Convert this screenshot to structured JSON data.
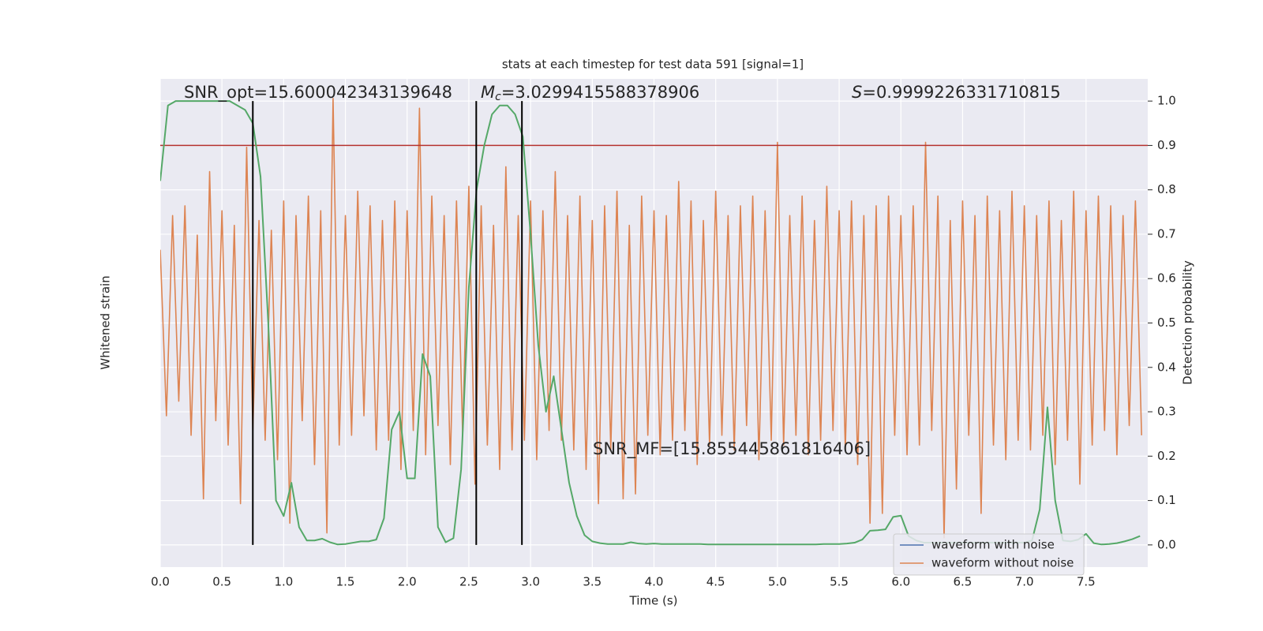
{
  "chart_data": {
    "type": "line",
    "title": "stats at each timestep for test data 591 [signal=1]",
    "xlabel": "Time (s)",
    "ylabel": "Whitened strain",
    "y2label": "Detection probability",
    "xlim": [
      0,
      8.0
    ],
    "xticks": [
      {
        "value": 0,
        "label": "0.0"
      },
      0.5,
      {
        "value": 1,
        "label": "1.0"
      },
      1.5,
      {
        "value": 2,
        "label": "2.0"
      },
      2.5,
      {
        "value": 3,
        "label": "3.0"
      },
      3.5,
      {
        "value": 4,
        "label": "4.0"
      },
      4.5,
      {
        "value": 5,
        "label": "5.0"
      },
      5.5,
      {
        "value": 6,
        "label": "6.0"
      },
      6.5,
      {
        "value": 7,
        "label": "7.0"
      },
      7.5
    ],
    "ylim": [
      -5,
      5
    ],
    "y2lim": [
      -0.05,
      1.05
    ],
    "y2ticks": [
      {
        "value": 0,
        "label": "0.0"
      },
      0.1,
      0.2,
      0.3,
      0.4,
      0.5,
      0.6,
      0.7,
      0.8,
      0.9,
      {
        "value": 1,
        "label": "1.0"
      }
    ],
    "grid": true,
    "legend": "lower right",
    "series": [
      {
        "name": "waveform with noise",
        "color": "#4c72b0",
        "x": [],
        "values": []
      },
      {
        "name": "waveform without noise",
        "color": "#dd8452",
        "x": [
          0.0,
          0.05,
          0.1,
          0.15,
          0.2,
          0.25,
          0.3,
          0.35,
          0.4,
          0.45,
          0.5,
          0.55,
          0.6,
          0.65,
          0.7,
          0.75,
          0.8,
          0.85,
          0.9,
          0.95,
          1.0,
          1.05,
          1.1,
          1.15,
          1.2,
          1.25,
          1.3,
          1.35,
          1.4,
          1.45,
          1.5,
          1.55,
          1.6,
          1.65,
          1.7,
          1.75,
          1.8,
          1.85,
          1.9,
          1.95,
          2.0,
          2.05,
          2.1,
          2.15,
          2.2,
          2.25,
          2.3,
          2.35,
          2.4,
          2.45,
          2.5,
          2.55,
          2.6,
          2.65,
          2.7,
          2.75,
          2.8,
          2.85,
          2.9,
          2.95,
          3.0,
          3.05,
          3.1,
          3.15,
          3.2,
          3.25,
          3.3,
          3.35,
          3.4,
          3.45,
          3.5,
          3.55,
          3.6,
          3.65,
          3.7,
          3.75,
          3.8,
          3.85,
          3.9,
          3.95,
          4.0,
          4.05,
          4.1,
          4.15,
          4.2,
          4.25,
          4.3,
          4.35,
          4.4,
          4.45,
          4.5,
          4.55,
          4.6,
          4.65,
          4.7,
          4.75,
          4.8,
          4.85,
          4.9,
          4.95,
          5.0,
          5.05,
          5.1,
          5.15,
          5.2,
          5.25,
          5.3,
          5.35,
          5.4,
          5.45,
          5.5,
          5.55,
          5.6,
          5.65,
          5.7,
          5.75,
          5.8,
          5.85,
          5.9,
          5.95,
          6.0,
          6.05,
          6.1,
          6.15,
          6.2,
          6.25,
          6.3,
          6.35,
          6.4,
          6.45,
          6.5,
          6.55,
          6.6,
          6.65,
          6.7,
          6.75,
          6.8,
          6.85,
          6.9,
          6.95,
          7.0,
          7.05,
          7.1,
          7.15,
          7.2,
          7.25,
          7.3,
          7.35,
          7.4,
          7.45,
          7.5,
          7.55,
          7.6,
          7.65,
          7.7,
          7.75,
          7.8,
          7.85,
          7.9,
          7.95
        ],
        "values": [
          1.5,
          -1.9,
          2.2,
          -1.6,
          2.4,
          -2.3,
          1.8,
          -3.6,
          3.1,
          -2.0,
          2.3,
          -2.5,
          2.0,
          -3.7,
          3.6,
          -2.2,
          2.1,
          -2.4,
          1.9,
          -2.8,
          2.5,
          -4.1,
          2.2,
          -2.0,
          2.6,
          -2.9,
          2.3,
          -4.3,
          4.6,
          -2.5,
          2.2,
          -2.3,
          2.7,
          -1.9,
          2.4,
          -2.6,
          2.1,
          -2.4,
          2.5,
          -3.0,
          2.3,
          -2.2,
          4.4,
          -2.7,
          2.6,
          -2.1,
          2.2,
          -2.9,
          2.5,
          -2.3,
          2.8,
          -3.3,
          2.4,
          -2.5,
          2.0,
          -3.0,
          3.2,
          -2.6,
          2.2,
          -2.4,
          2.5,
          -2.8,
          2.3,
          -2.2,
          3.1,
          -2.4,
          2.2,
          -2.6,
          2.6,
          -3.0,
          2.1,
          -3.7,
          2.4,
          -2.6,
          2.7,
          -3.6,
          2.0,
          -3.5,
          2.6,
          -2.3,
          2.3,
          -2.7,
          2.2,
          -2.4,
          2.9,
          -2.2,
          2.5,
          -2.9,
          2.1,
          -2.5,
          2.7,
          -2.3,
          2.2,
          -2.6,
          2.4,
          -2.1,
          2.6,
          -2.8,
          2.3,
          -2.4,
          3.7,
          -2.5,
          2.2,
          -2.3,
          2.6,
          -2.7,
          2.1,
          -2.4,
          2.8,
          -2.2,
          2.3,
          -2.6,
          2.5,
          -2.9,
          2.2,
          -4.1,
          2.4,
          -3.9,
          2.6,
          -2.3,
          2.2,
          -2.7,
          2.4,
          -2.5,
          3.7,
          -2.2,
          2.6,
          -4.4,
          2.1,
          -3.4,
          2.5,
          -2.3,
          2.2,
          -3.9,
          2.6,
          -2.5,
          2.3,
          -2.8,
          2.7,
          -2.4,
          2.4,
          -2.6,
          2.2,
          -2.3,
          2.5,
          -2.9,
          2.1,
          -2.4,
          2.7,
          -3.3,
          2.3,
          -2.5,
          2.6,
          -2.2,
          2.4,
          -2.7,
          2.2,
          -2.1,
          2.5,
          -2.3
        ]
      },
      {
        "color": "#55a868",
        "axis": "y2",
        "x": [
          0.0,
          0.0625,
          0.125,
          0.1875,
          0.25,
          0.3125,
          0.375,
          0.4375,
          0.5,
          0.5625,
          0.625,
          0.6875,
          0.75,
          0.8125,
          0.875,
          0.9375,
          1.0,
          1.0625,
          1.125,
          1.1875,
          1.25,
          1.3125,
          1.375,
          1.4375,
          1.5,
          1.5625,
          1.625,
          1.6875,
          1.75,
          1.8125,
          1.875,
          1.9375,
          2.0,
          2.0625,
          2.125,
          2.1875,
          2.25,
          2.3125,
          2.375,
          2.4375,
          2.5,
          2.5625,
          2.625,
          2.6875,
          2.75,
          2.8125,
          2.875,
          2.9375,
          3.0,
          3.0625,
          3.125,
          3.1875,
          3.25,
          3.3125,
          3.375,
          3.4375,
          3.5,
          3.5625,
          3.625,
          3.6875,
          3.75,
          3.8125,
          3.875,
          3.9375,
          4.0,
          4.0625,
          4.125,
          4.1875,
          4.25,
          4.3125,
          4.375,
          4.4375,
          4.5,
          4.5625,
          4.625,
          4.6875,
          4.75,
          4.8125,
          4.875,
          4.9375,
          5.0,
          5.0625,
          5.125,
          5.1875,
          5.25,
          5.3125,
          5.375,
          5.4375,
          5.5,
          5.5625,
          5.625,
          5.6875,
          5.75,
          5.8125,
          5.875,
          5.9375,
          6.0,
          6.0625,
          6.125,
          6.1875,
          6.25,
          6.3125,
          6.375,
          6.4375,
          6.5,
          6.5625,
          6.625,
          6.6875,
          6.75,
          6.8125,
          6.875,
          6.9375,
          7.0,
          7.0625,
          7.125,
          7.1875,
          7.25,
          7.3125,
          7.375,
          7.4375,
          7.5,
          7.5625,
          7.625,
          7.6875,
          7.75,
          7.8125,
          7.875,
          7.9375
        ],
        "values": [
          0.82,
          0.99,
          1.0,
          1.0,
          1.0,
          1.0,
          1.0,
          1.0,
          1.0,
          1.0,
          0.99,
          0.98,
          0.95,
          0.83,
          0.5,
          0.1,
          0.065,
          0.14,
          0.04,
          0.01,
          0.01,
          0.014,
          0.006,
          0.001,
          0.002,
          0.005,
          0.008,
          0.008,
          0.012,
          0.06,
          0.26,
          0.3,
          0.15,
          0.15,
          0.43,
          0.38,
          0.04,
          0.006,
          0.015,
          0.17,
          0.58,
          0.8,
          0.9,
          0.97,
          0.99,
          0.99,
          0.97,
          0.92,
          0.7,
          0.45,
          0.3,
          0.38,
          0.26,
          0.14,
          0.065,
          0.022,
          0.008,
          0.004,
          0.002,
          0.002,
          0.002,
          0.006,
          0.003,
          0.002,
          0.003,
          0.002,
          0.002,
          0.002,
          0.002,
          0.002,
          0.002,
          0.001,
          0.001,
          0.001,
          0.001,
          0.001,
          0.001,
          0.001,
          0.001,
          0.001,
          0.001,
          0.001,
          0.001,
          0.001,
          0.001,
          0.001,
          0.002,
          0.002,
          0.002,
          0.003,
          0.005,
          0.012,
          0.032,
          0.033,
          0.035,
          0.063,
          0.066,
          0.02,
          0.01,
          0.005,
          0.005,
          0.005,
          0.005,
          0.005,
          0.005,
          0.005,
          0.005,
          0.005,
          0.005,
          0.005,
          0.005,
          0.005,
          0.005,
          0.01,
          0.08,
          0.31,
          0.1,
          0.01,
          0.008,
          0.012,
          0.025,
          0.004,
          0.001,
          0.002,
          0.004,
          0.008,
          0.013,
          0.02
        ]
      }
    ],
    "vlines": {
      "x": [
        0.75,
        2.56,
        2.93
      ],
      "ymin": 0,
      "ymax": 1,
      "color": "#000000",
      "axis": "y2"
    },
    "hlines": {
      "y": [
        0.9
      ],
      "color": "#b5322f",
      "axis": "y2"
    },
    "annotations": [
      {
        "text": "SNR_opt=15.600042343139648"
      },
      {
        "symbol": "M",
        "subscript": "c",
        "text": "=3.0299415588378906"
      },
      {
        "symbol": "S",
        "text": "=0.9999226331710815"
      },
      {
        "text": "SNR_MF=[15.855445861816406]"
      }
    ]
  }
}
